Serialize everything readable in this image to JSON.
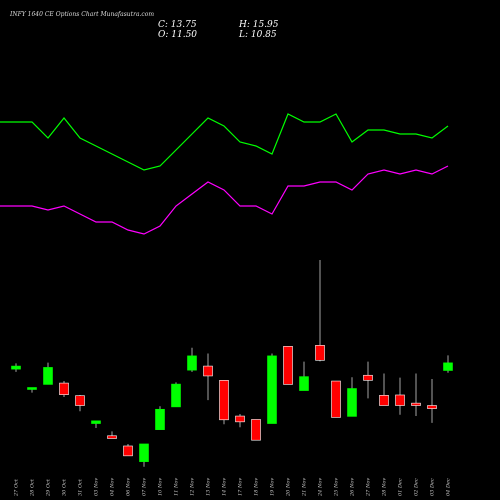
{
  "chart_data": {
    "type": "candlestick",
    "title": "INFY 1640  CE Options Chart Munafasutra.com",
    "ohlc_readout": {
      "close": "C: 13.75",
      "high": "H: 15.95",
      "open": "O: 11.50",
      "low": "L: 10.85"
    },
    "categories": [
      "27 Oct",
      "28 Oct",
      "29 Oct",
      "30 Oct",
      "31 Oct",
      "03 Nov",
      "04 Nov",
      "06 Nov",
      "07 Nov",
      "10 Nov",
      "11 Nov",
      "12 Nov",
      "13 Nov",
      "14 Nov",
      "17 Nov",
      "18 Nov",
      "19 Nov",
      "20 Nov",
      "21 Nov",
      "24 Nov",
      "25 Nov",
      "26 Nov",
      "27 Nov",
      "28 Nov",
      "01 Dec",
      "02 Dec",
      "03 Dec",
      "04 Dec"
    ],
    "candles": [
      {
        "o": 11.9,
        "h": 13.6,
        "l": 11.1,
        "c": 12.8
      },
      {
        "o": 6.0,
        "h": 6.5,
        "l": 5.0,
        "c": 6.5
      },
      {
        "o": 7.4,
        "h": 13.8,
        "l": 7.4,
        "c": 12.4
      },
      {
        "o": 7.8,
        "h": 8.4,
        "l": 3.7,
        "c": 4.4
      },
      {
        "o": 4.1,
        "h": 4.3,
        "l": -0.5,
        "c": 1.2
      },
      {
        "o": -4.1,
        "h": -3.3,
        "l": -5.4,
        "c": -3.3
      },
      {
        "o": -7.7,
        "h": -6.4,
        "l": -8.5,
        "c": -8.5
      },
      {
        "o": -10.7,
        "h": -10.1,
        "l": -13.6,
        "c": -13.6
      },
      {
        "o": -15.3,
        "h": -10.1,
        "l": -16.8,
        "c": -10.1
      },
      {
        "o": -5.9,
        "h": 1.0,
        "l": -5.9,
        "c": 0.1
      },
      {
        "o": 0.8,
        "h": 8.0,
        "l": 0.8,
        "c": 7.5
      },
      {
        "o": 11.6,
        "h": 18.2,
        "l": 11.1,
        "c": 15.8
      },
      {
        "o": 12.8,
        "h": 16.5,
        "l": 2.8,
        "c": 9.9
      },
      {
        "o": 8.6,
        "h": 8.6,
        "l": -4.3,
        "c": -3.0
      },
      {
        "o": -1.9,
        "h": -1.3,
        "l": -5.2,
        "c": -3.6
      },
      {
        "o": -2.9,
        "h": -2.9,
        "l": -9.0,
        "c": -9.0
      },
      {
        "o": -4.1,
        "h": 16.5,
        "l": -4.1,
        "c": 15.8
      },
      {
        "o": 18.6,
        "h": 18.6,
        "l": 7.4,
        "c": 7.4
      },
      {
        "o": 5.6,
        "h": 14.1,
        "l": 5.6,
        "c": 9.7
      },
      {
        "o": 18.9,
        "h": 44.0,
        "l": 14.2,
        "c": 14.5
      },
      {
        "o": 8.4,
        "h": 8.4,
        "l": -2.3,
        "c": -2.3
      },
      {
        "o": -2.0,
        "h": 9.5,
        "l": -2.0,
        "c": 6.2
      },
      {
        "o": 10.1,
        "h": 14.1,
        "l": 3.3,
        "c": 8.6
      },
      {
        "o": 4.2,
        "h": 10.6,
        "l": 1.2,
        "c": 1.2
      },
      {
        "o": 4.3,
        "h": 9.4,
        "l": -1.5,
        "c": 1.2
      },
      {
        "o": 1.9,
        "h": 10.6,
        "l": -1.9,
        "c": 1.2
      },
      {
        "o": 1.2,
        "h": 9.0,
        "l": -3.9,
        "c": 0.3
      },
      {
        "o": 11.5,
        "h": 15.95,
        "l": 10.85,
        "c": 13.75
      }
    ],
    "series": [
      {
        "color": "#00ff00",
        "values": [
          77,
          77,
          73,
          78,
          73,
          71,
          69,
          67,
          65,
          66,
          70,
          74,
          78,
          76,
          72,
          71,
          69,
          79,
          77,
          77,
          79,
          72,
          75,
          75,
          74,
          74,
          73,
          76
        ]
      },
      {
        "color": "#ff00ff",
        "values": [
          56,
          56,
          55,
          56,
          54,
          52,
          52,
          50,
          49,
          51,
          56,
          59,
          62,
          60,
          56,
          56,
          54,
          61,
          61,
          62,
          62,
          60,
          64,
          65,
          64,
          65,
          64,
          66
        ]
      }
    ],
    "colors": {
      "up": "#00ff00",
      "down": "#ff0000",
      "background": "#000000"
    }
  }
}
